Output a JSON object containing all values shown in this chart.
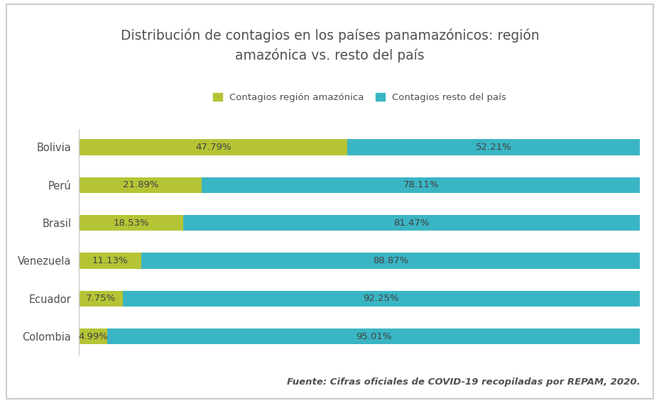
{
  "title": "Distribución de contagios en los países panamazónicos: región\namazónica vs. resto del país",
  "countries": [
    "Bolivia",
    "Perú",
    "Brasil",
    "Venezuela",
    "Ecuador",
    "Colombia"
  ],
  "amazon_pct": [
    47.79,
    21.89,
    18.53,
    11.13,
    7.75,
    4.99
  ],
  "rest_pct": [
    52.21,
    78.11,
    81.47,
    88.87,
    92.25,
    95.01
  ],
  "amazon_color": "#b5c435",
  "rest_color": "#3ab5c3",
  "legend_amazon": "Contagios región amazónica",
  "legend_rest": "Contagios resto del país",
  "source_text": "Fuente: Cifras oficiales de COVID-19 recopiladas por REPAM, 2020.",
  "bg_color": "#ffffff",
  "border_color": "#cccccc",
  "title_color": "#505050",
  "label_color": "#404040",
  "bar_height": 0.42,
  "label_fontsize": 9.5,
  "title_fontsize": 13.5,
  "legend_fontsize": 9.5,
  "source_fontsize": 9.5,
  "country_fontsize": 10.5
}
